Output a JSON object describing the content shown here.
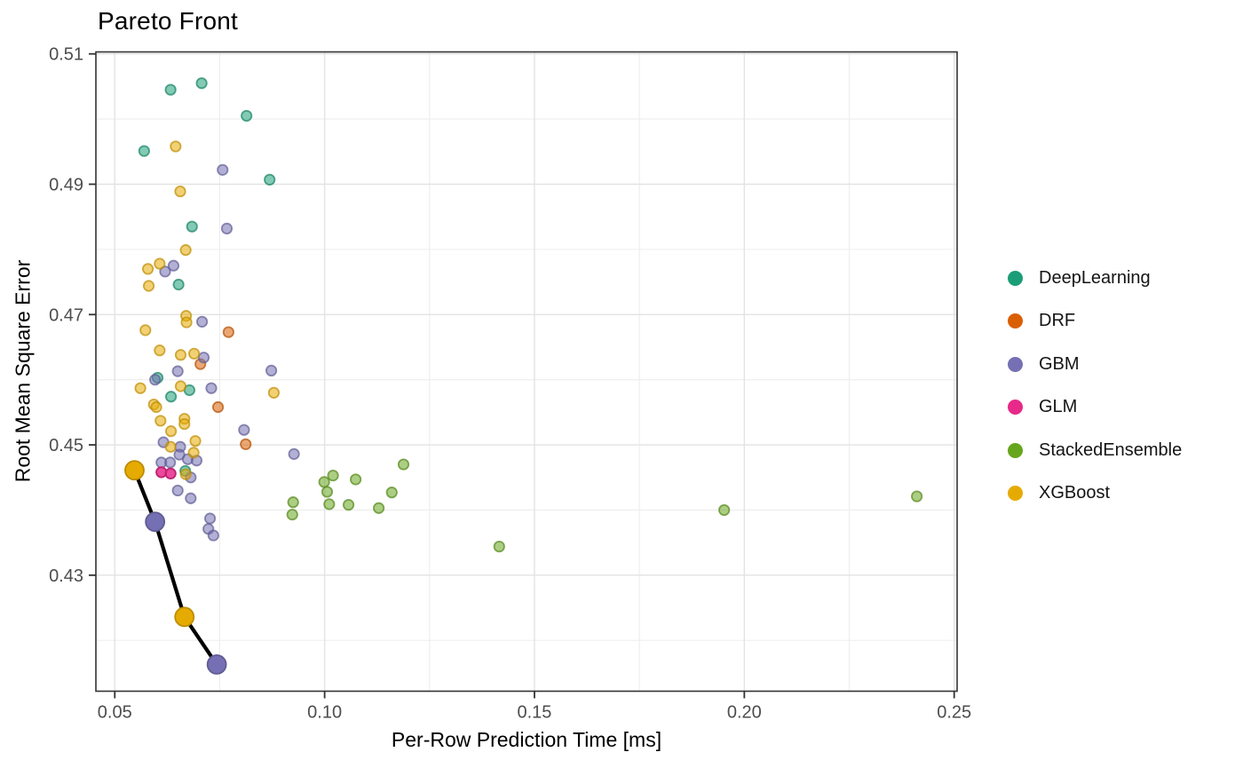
{
  "chart_data": {
    "type": "scatter",
    "title": "Pareto Front",
    "xlabel": "Per-Row Prediction Time [ms]",
    "ylabel": "Root Mean Square Error",
    "xlim": [
      0.0455,
      0.2507
    ],
    "ylim": [
      0.4122,
      0.5103
    ],
    "x_ticks": [
      0.05,
      0.1,
      0.15,
      0.2,
      0.25
    ],
    "x_tick_labels": [
      "0.05",
      "0.10",
      "0.15",
      "0.20",
      "0.25"
    ],
    "y_ticks": [
      0.43,
      0.45,
      0.47,
      0.49,
      0.51
    ],
    "y_tick_labels": [
      "0.43",
      "0.45",
      "0.47",
      "0.49",
      "0.51"
    ],
    "x_minor_ticks": [
      0.075,
      0.125,
      0.175,
      0.225
    ],
    "y_minor_ticks": [
      0.42,
      0.44,
      0.46,
      0.48,
      0.5
    ],
    "grid": true,
    "legend_position": "right",
    "style": {
      "background": "#FFFFFF",
      "panel_border": "#333333",
      "grid_major": "#E3E3E3",
      "grid_minor": "#EDEDED",
      "tick_color": "#333333",
      "tick_label_color": "#4D4D4D",
      "point_alpha": 0.55,
      "front_line_color": "#000000"
    },
    "series": [
      {
        "name": "DeepLearning",
        "color": "#1B9E77",
        "alpha": 0.55,
        "points": [
          [
            0.0633,
            0.5045
          ],
          [
            0.0707,
            0.5055
          ],
          [
            0.0814,
            0.5005
          ],
          [
            0.057,
            0.4951
          ],
          [
            0.0869,
            0.4907
          ],
          [
            0.0684,
            0.4835
          ],
          [
            0.0652,
            0.4746
          ],
          [
            0.0602,
            0.4603
          ],
          [
            0.0678,
            0.4584
          ],
          [
            0.0634,
            0.4574
          ],
          [
            0.0668,
            0.446
          ]
        ]
      },
      {
        "name": "DRF",
        "color": "#D95F02",
        "alpha": 0.55,
        "points": [
          [
            0.0771,
            0.4673
          ],
          [
            0.0704,
            0.4624
          ],
          [
            0.0746,
            0.4558
          ],
          [
            0.0812,
            0.4501
          ]
        ]
      },
      {
        "name": "GBM",
        "color": "#7570B3",
        "alpha": 0.55,
        "points": [
          [
            0.0757,
            0.4922
          ],
          [
            0.0767,
            0.4832
          ],
          [
            0.064,
            0.4775
          ],
          [
            0.062,
            0.4766
          ],
          [
            0.0708,
            0.4689
          ],
          [
            0.0712,
            0.4634
          ],
          [
            0.065,
            0.4613
          ],
          [
            0.0873,
            0.4614
          ],
          [
            0.0596,
            0.46
          ],
          [
            0.073,
            0.4587
          ],
          [
            0.0808,
            0.4523
          ],
          [
            0.0616,
            0.4504
          ],
          [
            0.0656,
            0.4497
          ],
          [
            0.0654,
            0.4485
          ],
          [
            0.0927,
            0.4486
          ],
          [
            0.0674,
            0.4478
          ],
          [
            0.0695,
            0.4476
          ],
          [
            0.0611,
            0.4473
          ],
          [
            0.0632,
            0.4473
          ],
          [
            0.0681,
            0.445
          ],
          [
            0.065,
            0.443
          ],
          [
            0.0681,
            0.4418
          ],
          [
            0.0727,
            0.4387
          ],
          [
            0.0723,
            0.4371
          ],
          [
            0.0735,
            0.4361
          ]
        ]
      },
      {
        "name": "GLM",
        "color": "#E7298A",
        "alpha": 0.85,
        "points": [
          [
            0.0611,
            0.4458
          ],
          [
            0.0633,
            0.4456
          ]
        ]
      },
      {
        "name": "StackedEnsemble",
        "color": "#66A61E",
        "alpha": 0.55,
        "points": [
          [
            0.0925,
            0.4412
          ],
          [
            0.0923,
            0.4393
          ],
          [
            0.0999,
            0.4443
          ],
          [
            0.1006,
            0.4428
          ],
          [
            0.102,
            0.4453
          ],
          [
            0.1011,
            0.4409
          ],
          [
            0.1074,
            0.4447
          ],
          [
            0.1057,
            0.4408
          ],
          [
            0.1129,
            0.4403
          ],
          [
            0.116,
            0.4427
          ],
          [
            0.1188,
            0.447
          ],
          [
            0.1416,
            0.4344
          ],
          [
            0.1952,
            0.44
          ],
          [
            0.2411,
            0.4421
          ]
        ]
      },
      {
        "name": "XGBoost",
        "color": "#E6AB02",
        "alpha": 0.55,
        "points": [
          [
            0.0645,
            0.4958
          ],
          [
            0.0656,
            0.4889
          ],
          [
            0.0669,
            0.4799
          ],
          [
            0.0607,
            0.4778
          ],
          [
            0.0579,
            0.477
          ],
          [
            0.0581,
            0.4744
          ],
          [
            0.067,
            0.4698
          ],
          [
            0.0671,
            0.4688
          ],
          [
            0.0573,
            0.4676
          ],
          [
            0.0607,
            0.4645
          ],
          [
            0.0657,
            0.4638
          ],
          [
            0.0689,
            0.464
          ],
          [
            0.0561,
            0.4587
          ],
          [
            0.0657,
            0.459
          ],
          [
            0.0879,
            0.458
          ],
          [
            0.0593,
            0.4562
          ],
          [
            0.0599,
            0.4558
          ],
          [
            0.0609,
            0.4537
          ],
          [
            0.0666,
            0.454
          ],
          [
            0.0666,
            0.4532
          ],
          [
            0.0634,
            0.4521
          ],
          [
            0.0692,
            0.4506
          ],
          [
            0.0633,
            0.4497
          ],
          [
            0.0688,
            0.4488
          ],
          [
            0.0669,
            0.4455
          ]
        ]
      }
    ],
    "pareto_front": {
      "description": "Pareto-optimal models connected by black line, drawn larger and fully opaque",
      "points": [
        {
          "x": 0.0547,
          "y": 0.4461,
          "series": "XGBoost"
        },
        {
          "x": 0.0596,
          "y": 0.4382,
          "series": "GBM"
        },
        {
          "x": 0.0666,
          "y": 0.4236,
          "series": "XGBoost"
        },
        {
          "x": 0.0743,
          "y": 0.4163,
          "series": "GBM"
        }
      ]
    }
  }
}
